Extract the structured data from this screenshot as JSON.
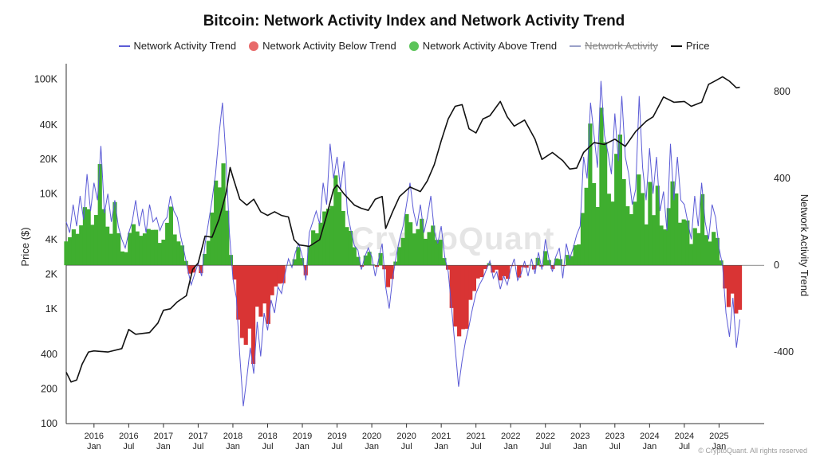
{
  "chart_data": {
    "type": "bar",
    "title": "Bitcoin: Network Activity Index and Network Activity Trend",
    "legend": [
      {
        "label": "Network Activity Trend",
        "color": "#5b5bd6",
        "kind": "line",
        "enabled": true
      },
      {
        "label": "Network Activity Below Trend",
        "color": "#e86a6a",
        "kind": "dot",
        "enabled": true
      },
      {
        "label": "Network Activity Above Trend",
        "color": "#5cc45a",
        "kind": "dot",
        "enabled": true
      },
      {
        "label": "Network Activity",
        "color": "#9aa0c8",
        "kind": "line",
        "enabled": false
      },
      {
        "label": "Price",
        "color": "#111111",
        "kind": "line",
        "enabled": true
      }
    ],
    "ylabel_left": "Price ($)",
    "ylabel_right": "Network Activity Trend",
    "left_axis": {
      "scale": "log",
      "min": 100,
      "max": 120000,
      "ticks": [
        {
          "v": 100,
          "l": "100"
        },
        {
          "v": 200,
          "l": "200"
        },
        {
          "v": 400,
          "l": "400"
        },
        {
          "v": 1000,
          "l": "1K"
        },
        {
          "v": 2000,
          "l": "2K"
        },
        {
          "v": 4000,
          "l": "4K"
        },
        {
          "v": 10000,
          "l": "10K"
        },
        {
          "v": 20000,
          "l": "20K"
        },
        {
          "v": 40000,
          "l": "40K"
        },
        {
          "v": 100000,
          "l": "100K"
        }
      ]
    },
    "right_axis": {
      "min": -730,
      "max": 900,
      "ticks": [
        {
          "v": 800,
          "l": "800"
        },
        {
          "v": 400,
          "l": "400"
        },
        {
          "v": 0,
          "l": "0"
        },
        {
          "v": -400,
          "l": "-400"
        }
      ]
    },
    "x_ticks": [
      {
        "t": 2016.0,
        "year": "2016",
        "part": "Jan"
      },
      {
        "t": 2016.5,
        "year": "2016",
        "part": "Jul"
      },
      {
        "t": 2017.0,
        "year": "2017",
        "part": "Jan"
      },
      {
        "t": 2017.5,
        "year": "2017",
        "part": "Jul"
      },
      {
        "t": 2018.0,
        "year": "2018",
        "part": "Jan"
      },
      {
        "t": 2018.5,
        "year": "2018",
        "part": "Jul"
      },
      {
        "t": 2019.0,
        "year": "2019",
        "part": "Jan"
      },
      {
        "t": 2019.5,
        "year": "2019",
        "part": "Jul"
      },
      {
        "t": 2020.0,
        "year": "2020",
        "part": "Jan"
      },
      {
        "t": 2020.5,
        "year": "2020",
        "part": "Jul"
      },
      {
        "t": 2021.0,
        "year": "2021",
        "part": "Jan"
      },
      {
        "t": 2021.5,
        "year": "2021",
        "part": "Jul"
      },
      {
        "t": 2022.0,
        "year": "2022",
        "part": "Jan"
      },
      {
        "t": 2022.5,
        "year": "2022",
        "part": "Jul"
      },
      {
        "t": 2023.0,
        "year": "2023",
        "part": "Jan"
      },
      {
        "t": 2023.5,
        "year": "2023",
        "part": "Jul"
      },
      {
        "t": 2024.0,
        "year": "2024",
        "part": "Jan"
      },
      {
        "t": 2024.5,
        "year": "2024",
        "part": "Jul"
      },
      {
        "t": 2025.0,
        "year": "2025",
        "part": "Jan"
      }
    ],
    "x_range": [
      2015.6,
      2025.65
    ],
    "price_series": {
      "name": "Price",
      "points": [
        [
          2015.6,
          280
        ],
        [
          2015.67,
          230
        ],
        [
          2015.75,
          240
        ],
        [
          2015.83,
          330
        ],
        [
          2015.92,
          420
        ],
        [
          2016.0,
          430
        ],
        [
          2016.2,
          420
        ],
        [
          2016.4,
          450
        ],
        [
          2016.5,
          660
        ],
        [
          2016.6,
          600
        ],
        [
          2016.8,
          620
        ],
        [
          2016.92,
          750
        ],
        [
          2017.0,
          970
        ],
        [
          2017.1,
          1000
        ],
        [
          2017.2,
          1150
        ],
        [
          2017.33,
          1300
        ],
        [
          2017.42,
          2200
        ],
        [
          2017.5,
          2500
        ],
        [
          2017.6,
          4300
        ],
        [
          2017.7,
          4200
        ],
        [
          2017.8,
          6000
        ],
        [
          2017.9,
          10000
        ],
        [
          2017.96,
          17000
        ],
        [
          2018.0,
          14000
        ],
        [
          2018.1,
          9000
        ],
        [
          2018.2,
          8000
        ],
        [
          2018.3,
          9000
        ],
        [
          2018.4,
          7000
        ],
        [
          2018.5,
          6500
        ],
        [
          2018.6,
          7000
        ],
        [
          2018.7,
          6500
        ],
        [
          2018.8,
          6300
        ],
        [
          2018.88,
          4000
        ],
        [
          2018.95,
          3600
        ],
        [
          2019.1,
          3500
        ],
        [
          2019.25,
          4000
        ],
        [
          2019.35,
          6500
        ],
        [
          2019.45,
          11000
        ],
        [
          2019.5,
          12000
        ],
        [
          2019.6,
          10000
        ],
        [
          2019.75,
          8000
        ],
        [
          2019.85,
          7500
        ],
        [
          2019.95,
          7200
        ],
        [
          2020.05,
          9000
        ],
        [
          2020.15,
          9500
        ],
        [
          2020.2,
          5000
        ],
        [
          2020.3,
          7000
        ],
        [
          2020.4,
          9500
        ],
        [
          2020.55,
          11500
        ],
        [
          2020.7,
          10500
        ],
        [
          2020.8,
          13000
        ],
        [
          2020.9,
          18000
        ],
        [
          2021.0,
          29000
        ],
        [
          2021.1,
          45000
        ],
        [
          2021.2,
          58000
        ],
        [
          2021.3,
          60000
        ],
        [
          2021.4,
          37000
        ],
        [
          2021.5,
          34000
        ],
        [
          2021.6,
          45000
        ],
        [
          2021.7,
          48000
        ],
        [
          2021.85,
          64000
        ],
        [
          2021.95,
          47000
        ],
        [
          2022.05,
          39000
        ],
        [
          2022.2,
          44000
        ],
        [
          2022.35,
          30000
        ],
        [
          2022.45,
          20000
        ],
        [
          2022.6,
          23000
        ],
        [
          2022.75,
          19500
        ],
        [
          2022.85,
          16500
        ],
        [
          2022.95,
          16800
        ],
        [
          2023.05,
          23000
        ],
        [
          2023.2,
          28000
        ],
        [
          2023.35,
          27000
        ],
        [
          2023.5,
          30000
        ],
        [
          2023.65,
          26000
        ],
        [
          2023.8,
          35000
        ],
        [
          2023.95,
          43000
        ],
        [
          2024.05,
          47000
        ],
        [
          2024.2,
          70000
        ],
        [
          2024.35,
          63000
        ],
        [
          2024.5,
          64000
        ],
        [
          2024.6,
          58000
        ],
        [
          2024.75,
          63000
        ],
        [
          2024.85,
          90000
        ],
        [
          2024.95,
          97000
        ],
        [
          2025.05,
          105000
        ],
        [
          2025.15,
          96000
        ],
        [
          2025.25,
          84000
        ],
        [
          2025.3,
          85000
        ]
      ]
    },
    "trend_series": {
      "name": "Network Activity Trend",
      "points": [
        [
          2015.6,
          200
        ],
        [
          2015.65,
          150
        ],
        [
          2015.7,
          280
        ],
        [
          2015.75,
          180
        ],
        [
          2015.8,
          320
        ],
        [
          2015.85,
          210
        ],
        [
          2015.9,
          420
        ],
        [
          2015.95,
          250
        ],
        [
          2016.0,
          380
        ],
        [
          2016.05,
          300
        ],
        [
          2016.1,
          550
        ],
        [
          2016.15,
          240
        ],
        [
          2016.2,
          330
        ],
        [
          2016.25,
          200
        ],
        [
          2016.3,
          300
        ],
        [
          2016.35,
          180
        ],
        [
          2016.4,
          120
        ],
        [
          2016.45,
          80
        ],
        [
          2016.5,
          150
        ],
        [
          2016.55,
          200
        ],
        [
          2016.6,
          300
        ],
        [
          2016.65,
          180
        ],
        [
          2016.7,
          260
        ],
        [
          2016.75,
          150
        ],
        [
          2016.8,
          280
        ],
        [
          2016.85,
          200
        ],
        [
          2016.9,
          220
        ],
        [
          2016.95,
          160
        ],
        [
          2017.0,
          200
        ],
        [
          2017.05,
          220
        ],
        [
          2017.1,
          320
        ],
        [
          2017.15,
          250
        ],
        [
          2017.2,
          220
        ],
        [
          2017.25,
          130
        ],
        [
          2017.3,
          60
        ],
        [
          2017.35,
          -20
        ],
        [
          2017.4,
          -90
        ],
        [
          2017.45,
          -40
        ],
        [
          2017.5,
          10
        ],
        [
          2017.55,
          -50
        ],
        [
          2017.6,
          100
        ],
        [
          2017.65,
          200
        ],
        [
          2017.7,
          300
        ],
        [
          2017.75,
          420
        ],
        [
          2017.8,
          600
        ],
        [
          2017.85,
          750
        ],
        [
          2017.9,
          500
        ],
        [
          2017.95,
          150
        ],
        [
          2018.0,
          -60
        ],
        [
          2018.05,
          -150
        ],
        [
          2018.1,
          -420
        ],
        [
          2018.15,
          -650
        ],
        [
          2018.2,
          -520
        ],
        [
          2018.25,
          -380
        ],
        [
          2018.3,
          -500
        ],
        [
          2018.35,
          -260
        ],
        [
          2018.4,
          -420
        ],
        [
          2018.45,
          -220
        ],
        [
          2018.5,
          -300
        ],
        [
          2018.55,
          -160
        ],
        [
          2018.6,
          -220
        ],
        [
          2018.65,
          -100
        ],
        [
          2018.7,
          -130
        ],
        [
          2018.75,
          -40
        ],
        [
          2018.8,
          30
        ],
        [
          2018.85,
          -10
        ],
        [
          2018.9,
          60
        ],
        [
          2018.95,
          100
        ],
        [
          2019.0,
          40
        ],
        [
          2019.05,
          -70
        ],
        [
          2019.1,
          150
        ],
        [
          2019.15,
          200
        ],
        [
          2019.2,
          250
        ],
        [
          2019.25,
          190
        ],
        [
          2019.3,
          380
        ],
        [
          2019.35,
          280
        ],
        [
          2019.4,
          560
        ],
        [
          2019.45,
          400
        ],
        [
          2019.5,
          500
        ],
        [
          2019.55,
          350
        ],
        [
          2019.6,
          480
        ],
        [
          2019.65,
          240
        ],
        [
          2019.7,
          160
        ],
        [
          2019.75,
          90
        ],
        [
          2019.8,
          70
        ],
        [
          2019.85,
          -20
        ],
        [
          2019.9,
          40
        ],
        [
          2019.95,
          80
        ],
        [
          2020.0,
          40
        ],
        [
          2020.05,
          -50
        ],
        [
          2020.1,
          30
        ],
        [
          2020.15,
          100
        ],
        [
          2020.2,
          -100
        ],
        [
          2020.25,
          -200
        ],
        [
          2020.3,
          -60
        ],
        [
          2020.35,
          40
        ],
        [
          2020.4,
          120
        ],
        [
          2020.45,
          180
        ],
        [
          2020.5,
          280
        ],
        [
          2020.55,
          380
        ],
        [
          2020.6,
          250
        ],
        [
          2020.65,
          180
        ],
        [
          2020.7,
          280
        ],
        [
          2020.75,
          150
        ],
        [
          2020.8,
          220
        ],
        [
          2020.85,
          320
        ],
        [
          2020.9,
          160
        ],
        [
          2020.95,
          100
        ],
        [
          2021.0,
          180
        ],
        [
          2021.05,
          40
        ],
        [
          2021.1,
          -30
        ],
        [
          2021.15,
          -200
        ],
        [
          2021.2,
          -380
        ],
        [
          2021.25,
          -560
        ],
        [
          2021.3,
          -440
        ],
        [
          2021.35,
          -350
        ],
        [
          2021.4,
          -280
        ],
        [
          2021.45,
          -200
        ],
        [
          2021.5,
          -130
        ],
        [
          2021.55,
          -90
        ],
        [
          2021.6,
          -60
        ],
        [
          2021.65,
          -20
        ],
        [
          2021.7,
          20
        ],
        [
          2021.75,
          -60
        ],
        [
          2021.8,
          -30
        ],
        [
          2021.85,
          -110
        ],
        [
          2021.9,
          -50
        ],
        [
          2021.95,
          -90
        ],
        [
          2022.0,
          -20
        ],
        [
          2022.05,
          30
        ],
        [
          2022.1,
          -70
        ],
        [
          2022.15,
          -40
        ],
        [
          2022.2,
          20
        ],
        [
          2022.25,
          -50
        ],
        [
          2022.3,
          30
        ],
        [
          2022.35,
          -40
        ],
        [
          2022.4,
          60
        ],
        [
          2022.45,
          -20
        ],
        [
          2022.5,
          120
        ],
        [
          2022.55,
          30
        ],
        [
          2022.6,
          -30
        ],
        [
          2022.65,
          40
        ],
        [
          2022.7,
          80
        ],
        [
          2022.75,
          -60
        ],
        [
          2022.8,
          100
        ],
        [
          2022.85,
          30
        ],
        [
          2022.9,
          80
        ],
        [
          2022.95,
          140
        ],
        [
          2023.0,
          180
        ],
        [
          2023.05,
          500
        ],
        [
          2023.1,
          400
        ],
        [
          2023.15,
          750
        ],
        [
          2023.2,
          600
        ],
        [
          2023.25,
          450
        ],
        [
          2023.3,
          850
        ],
        [
          2023.35,
          600
        ],
        [
          2023.4,
          520
        ],
        [
          2023.45,
          420
        ],
        [
          2023.5,
          700
        ],
        [
          2023.55,
          480
        ],
        [
          2023.6,
          780
        ],
        [
          2023.65,
          500
        ],
        [
          2023.7,
          420
        ],
        [
          2023.75,
          280
        ],
        [
          2023.8,
          350
        ],
        [
          2023.85,
          780
        ],
        [
          2023.9,
          450
        ],
        [
          2023.95,
          300
        ],
        [
          2024.0,
          540
        ],
        [
          2024.05,
          330
        ],
        [
          2024.1,
          500
        ],
        [
          2024.15,
          250
        ],
        [
          2024.2,
          340
        ],
        [
          2024.25,
          160
        ],
        [
          2024.3,
          560
        ],
        [
          2024.35,
          300
        ],
        [
          2024.4,
          500
        ],
        [
          2024.45,
          300
        ],
        [
          2024.5,
          280
        ],
        [
          2024.55,
          200
        ],
        [
          2024.6,
          120
        ],
        [
          2024.65,
          320
        ],
        [
          2024.7,
          180
        ],
        [
          2024.75,
          380
        ],
        [
          2024.8,
          200
        ],
        [
          2024.85,
          120
        ],
        [
          2024.9,
          280
        ],
        [
          2024.95,
          220
        ],
        [
          2025.0,
          80
        ],
        [
          2025.05,
          0
        ],
        [
          2025.1,
          -220
        ],
        [
          2025.15,
          -330
        ],
        [
          2025.2,
          -150
        ],
        [
          2025.25,
          -380
        ],
        [
          2025.3,
          -250
        ]
      ]
    },
    "watermark": "CryptoQuant",
    "credit": "© CryptoQuant. All rights reserved"
  }
}
